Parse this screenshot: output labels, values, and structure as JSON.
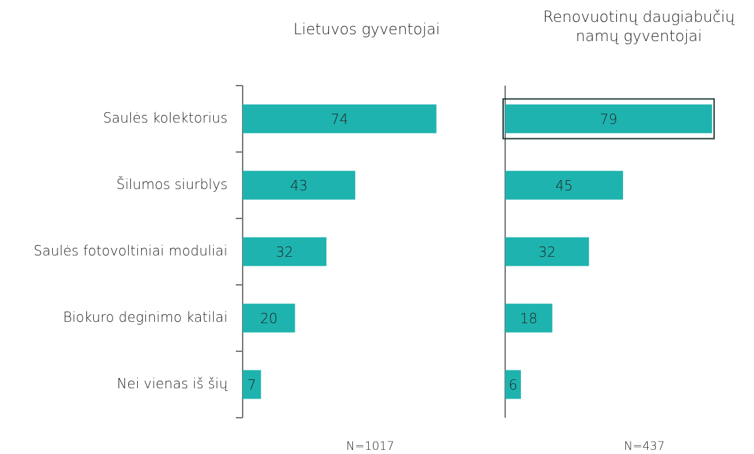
{
  "chart_data": [
    {
      "type": "bar",
      "orientation": "horizontal",
      "title": "Lietuvos gyventojai",
      "categories": [
        "Saulės kolektorius",
        "Šilumos siurblys",
        "Saulės fotovoltiniai moduliai",
        "Biokuro deginimo katilai",
        "Nei vienas iš šių"
      ],
      "values": [
        74,
        43,
        32,
        20,
        7
      ],
      "color": "#1eb3ae",
      "xlim": [
        0,
        100
      ],
      "note": "N=1017"
    },
    {
      "type": "bar",
      "orientation": "horizontal",
      "title": "Renovuotinų daugiabučių namų gyventojai",
      "values": [
        79,
        45,
        32,
        18,
        6
      ],
      "color": "#1eb3ae",
      "xlim": [
        0,
        100
      ],
      "note": "N=437",
      "highlight_index": 0
    }
  ]
}
